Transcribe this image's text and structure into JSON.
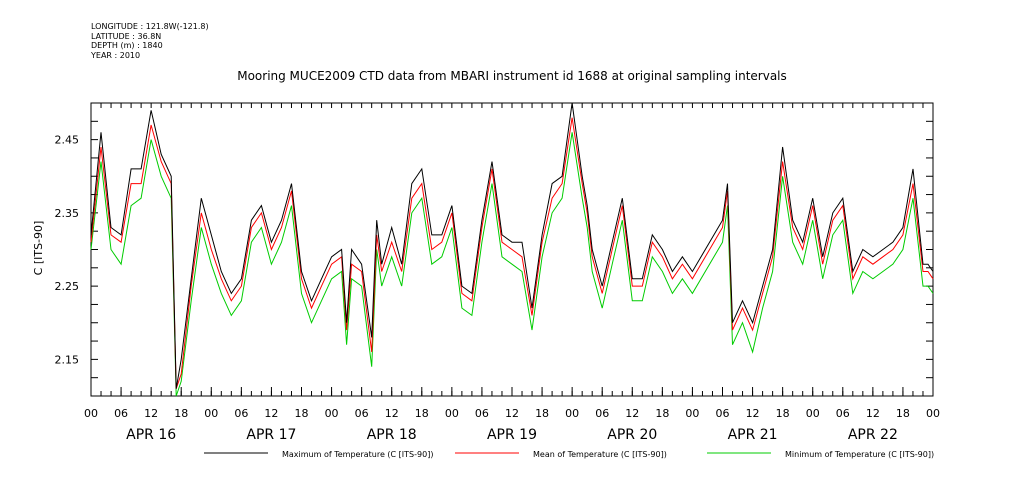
{
  "meta": {
    "longitude": "LONGITUDE : 121.8W(-121.8)",
    "latitude": "LATITUDE : 36.8N",
    "depth": "DEPTH (m) : 1840",
    "year": "YEAR : 2010"
  },
  "chart_data": {
    "type": "line",
    "title": "Mooring MUCE2009 CTD data from MBARI instrument id 1688 at original sampling intervals",
    "ylabel": "C [ITS-90]",
    "xlabel": "",
    "ylim": [
      2.1,
      2.5
    ],
    "yticks": [
      2.15,
      2.25,
      2.35,
      2.45
    ],
    "ytick_labels": [
      "2.15",
      "2.25",
      "2.35",
      "2.45"
    ],
    "x_range_hours": [
      0,
      168
    ],
    "x_tick_hours": [
      0,
      6,
      12,
      18,
      24,
      30,
      36,
      42,
      48,
      54,
      60,
      66,
      72,
      78,
      84,
      90,
      96,
      102,
      108,
      114,
      120,
      126,
      132,
      138,
      144,
      150,
      156,
      162,
      168
    ],
    "x_tick_labels": [
      "00",
      "06",
      "12",
      "18",
      "00",
      "06",
      "12",
      "18",
      "00",
      "06",
      "12",
      "18",
      "00",
      "06",
      "12",
      "18",
      "00",
      "06",
      "12",
      "18",
      "00",
      "06",
      "12",
      "18",
      "00",
      "06",
      "12",
      "18",
      "00"
    ],
    "day_labels": [
      "APR 16",
      "APR 17",
      "APR 18",
      "APR 19",
      "APR 20",
      "APR 21",
      "APR 22"
    ],
    "day_label_hours": [
      12,
      36,
      60,
      84,
      108,
      132,
      156
    ],
    "x_hours": [
      0,
      2,
      4,
      6,
      8,
      10,
      12,
      14,
      16,
      17,
      18,
      20,
      22,
      24,
      26,
      28,
      30,
      32,
      34,
      36,
      38,
      40,
      42,
      44,
      46,
      48,
      50,
      51,
      52,
      54,
      56,
      57,
      58,
      60,
      62,
      64,
      66,
      68,
      70,
      72,
      74,
      76,
      78,
      80,
      82,
      84,
      86,
      88,
      90,
      92,
      94,
      96,
      98,
      99,
      100,
      102,
      104,
      106,
      108,
      110,
      112,
      114,
      116,
      118,
      120,
      126,
      127,
      128,
      130,
      132,
      134,
      136,
      138,
      140,
      142,
      144,
      146,
      148,
      150,
      152,
      154,
      156,
      158,
      160,
      162,
      164,
      166,
      167,
      168
    ],
    "series": [
      {
        "name": "Maximum of Temperature (C [ITS-90])",
        "color": "#000000",
        "values": [
          2.32,
          2.46,
          2.33,
          2.32,
          2.41,
          2.41,
          2.49,
          2.43,
          2.4,
          2.11,
          2.15,
          2.26,
          2.37,
          2.32,
          2.27,
          2.24,
          2.26,
          2.34,
          2.36,
          2.31,
          2.34,
          2.39,
          2.27,
          2.23,
          2.26,
          2.29,
          2.3,
          2.2,
          2.3,
          2.28,
          2.18,
          2.34,
          2.28,
          2.33,
          2.28,
          2.39,
          2.41,
          2.32,
          2.32,
          2.36,
          2.25,
          2.24,
          2.34,
          2.42,
          2.32,
          2.31,
          2.31,
          2.22,
          2.32,
          2.39,
          2.4,
          2.5,
          2.4,
          2.36,
          2.3,
          2.25,
          2.31,
          2.37,
          2.26,
          2.26,
          2.32,
          2.3,
          2.27,
          2.29,
          2.27,
          2.34,
          2.39,
          2.2,
          2.23,
          2.2,
          2.25,
          2.3,
          2.44,
          2.34,
          2.31,
          2.37,
          2.29,
          2.35,
          2.37,
          2.27,
          2.3,
          2.29,
          2.3,
          2.31,
          2.33,
          2.41,
          2.28,
          2.28,
          2.27
        ]
      },
      {
        "name": "Mean of Temperature (C [ITS-90])",
        "color": "#ff0000",
        "values": [
          2.31,
          2.44,
          2.32,
          2.31,
          2.39,
          2.39,
          2.47,
          2.42,
          2.39,
          2.11,
          2.13,
          2.25,
          2.35,
          2.3,
          2.26,
          2.23,
          2.25,
          2.33,
          2.35,
          2.3,
          2.33,
          2.38,
          2.26,
          2.22,
          2.25,
          2.28,
          2.29,
          2.19,
          2.28,
          2.27,
          2.16,
          2.32,
          2.27,
          2.31,
          2.27,
          2.37,
          2.39,
          2.3,
          2.31,
          2.35,
          2.24,
          2.23,
          2.33,
          2.41,
          2.31,
          2.3,
          2.29,
          2.21,
          2.31,
          2.37,
          2.39,
          2.48,
          2.39,
          2.35,
          2.29,
          2.24,
          2.3,
          2.36,
          2.25,
          2.25,
          2.31,
          2.29,
          2.26,
          2.28,
          2.26,
          2.33,
          2.38,
          2.19,
          2.22,
          2.19,
          2.24,
          2.29,
          2.42,
          2.33,
          2.3,
          2.36,
          2.28,
          2.34,
          2.36,
          2.26,
          2.29,
          2.28,
          2.29,
          2.3,
          2.32,
          2.39,
          2.27,
          2.27,
          2.26
        ]
      },
      {
        "name": "Minimum of Temperature (C [ITS-90])",
        "color": "#00cc00",
        "values": [
          2.3,
          2.42,
          2.3,
          2.28,
          2.36,
          2.37,
          2.45,
          2.4,
          2.37,
          2.1,
          2.12,
          2.23,
          2.33,
          2.28,
          2.24,
          2.21,
          2.23,
          2.31,
          2.33,
          2.28,
          2.31,
          2.36,
          2.24,
          2.2,
          2.23,
          2.26,
          2.27,
          2.17,
          2.26,
          2.25,
          2.14,
          2.3,
          2.25,
          2.29,
          2.25,
          2.35,
          2.37,
          2.28,
          2.29,
          2.33,
          2.22,
          2.21,
          2.31,
          2.39,
          2.29,
          2.28,
          2.27,
          2.19,
          2.29,
          2.35,
          2.37,
          2.46,
          2.37,
          2.33,
          2.27,
          2.22,
          2.28,
          2.34,
          2.23,
          2.23,
          2.29,
          2.27,
          2.24,
          2.26,
          2.24,
          2.31,
          2.36,
          2.17,
          2.2,
          2.16,
          2.22,
          2.27,
          2.4,
          2.31,
          2.28,
          2.34,
          2.26,
          2.32,
          2.34,
          2.24,
          2.27,
          2.26,
          2.27,
          2.28,
          2.3,
          2.37,
          2.25,
          2.25,
          2.24
        ]
      }
    ]
  }
}
